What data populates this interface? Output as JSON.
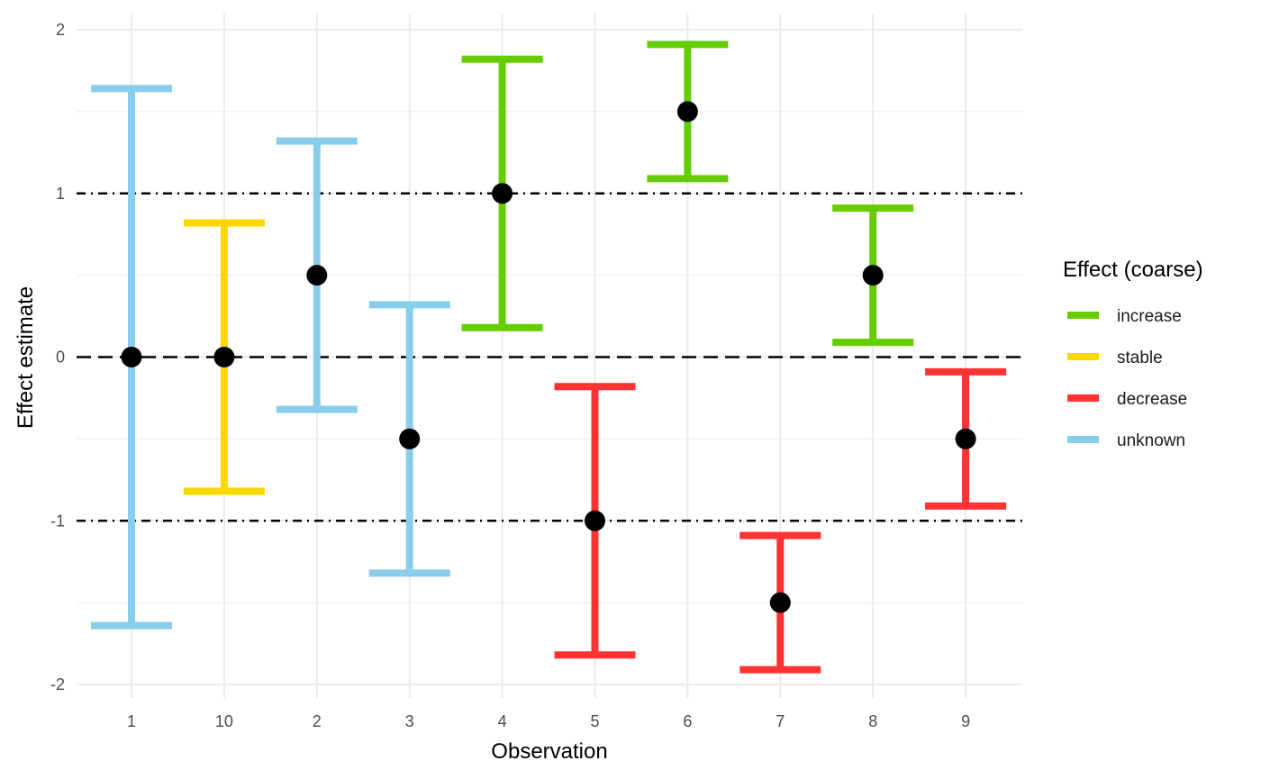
{
  "chart_data": {
    "type": "errorbar",
    "title": "",
    "xlabel": "Observation",
    "ylabel": "Effect estimate",
    "ylim": [
      -2.0,
      2.0
    ],
    "y_ticks": [
      -2,
      -1,
      0,
      1,
      2
    ],
    "y_tick_labels": [
      "-2",
      "-1",
      "0",
      "1",
      "2"
    ],
    "categories": [
      "1",
      "10",
      "2",
      "3",
      "4",
      "5",
      "6",
      "7",
      "8",
      "9"
    ],
    "points": [
      {
        "x": "1",
        "estimate": 0.0,
        "lower": -1.64,
        "upper": 1.64,
        "effect": "unknown"
      },
      {
        "x": "10",
        "estimate": 0.0,
        "lower": -0.82,
        "upper": 0.82,
        "effect": "stable"
      },
      {
        "x": "2",
        "estimate": 0.5,
        "lower": -0.32,
        "upper": 1.32,
        "effect": "unknown"
      },
      {
        "x": "3",
        "estimate": -0.5,
        "lower": -1.32,
        "upper": 0.32,
        "effect": "unknown"
      },
      {
        "x": "4",
        "estimate": 1.0,
        "lower": 0.18,
        "upper": 1.82,
        "effect": "increase"
      },
      {
        "x": "5",
        "estimate": -1.0,
        "lower": -1.82,
        "upper": -0.18,
        "effect": "decrease"
      },
      {
        "x": "6",
        "estimate": 1.5,
        "lower": 1.09,
        "upper": 1.91,
        "effect": "increase"
      },
      {
        "x": "7",
        "estimate": -1.5,
        "lower": -1.91,
        "upper": -1.09,
        "effect": "decrease"
      },
      {
        "x": "8",
        "estimate": 0.5,
        "lower": 0.09,
        "upper": 0.91,
        "effect": "increase"
      },
      {
        "x": "9",
        "estimate": -0.5,
        "lower": -0.91,
        "upper": -0.09,
        "effect": "decrease"
      }
    ],
    "reference_lines": [
      {
        "y": 0,
        "style": "dashed"
      },
      {
        "y": 1,
        "style": "dotdash"
      },
      {
        "y": -1,
        "style": "dotdash"
      }
    ],
    "legend": {
      "title": "Effect (coarse)",
      "position": "right",
      "entries": [
        {
          "label": "increase",
          "color": "#66cc00"
        },
        {
          "label": "stable",
          "color": "#ffd700"
        },
        {
          "label": "decrease",
          "color": "#ff3333"
        },
        {
          "label": "unknown",
          "color": "#87ceeb"
        }
      ]
    },
    "grid": true,
    "point_color": "#000000"
  }
}
